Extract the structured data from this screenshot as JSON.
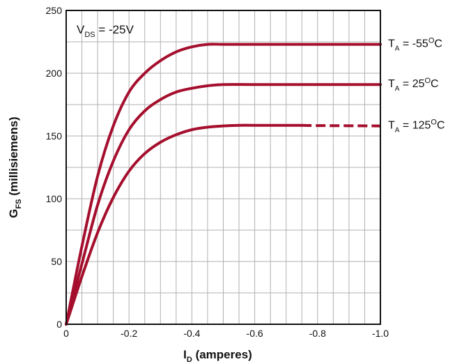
{
  "chart_data": {
    "type": "line",
    "x_axis": {
      "label_main": "I",
      "label_sub": "D",
      "label_rest": " (amperes)",
      "range": [
        0,
        -1.0
      ],
      "ticks": [
        0,
        -0.2,
        -0.4,
        -0.6,
        -0.8,
        -1.0
      ],
      "tick_labels": [
        "0",
        "-0.2",
        "-0.4",
        "-0.6",
        "-0.8",
        "-1.0"
      ]
    },
    "y_axis": {
      "label_main": "G",
      "label_sub": "FS",
      "label_rest": " (millisiemens)",
      "range": [
        0,
        250
      ],
      "ticks": [
        0,
        50,
        100,
        150,
        200,
        250
      ],
      "tick_labels": [
        "0",
        "50",
        "100",
        "150",
        "200",
        "250"
      ]
    },
    "grid": true,
    "annotation": {
      "main": "V",
      "sub": "DS",
      "rest": " = -25V"
    },
    "line_color": "#a50f2d",
    "series": [
      {
        "label": {
          "main": "T",
          "sub": "A",
          "rest": " = -55",
          "sup": "O",
          "unit": "C"
        },
        "x": [
          0,
          -0.05,
          -0.1,
          -0.15,
          -0.2,
          -0.25,
          -0.3,
          -0.35,
          -0.4,
          -0.45,
          -0.5,
          -0.6,
          -0.8,
          -1.0
        ],
        "y": [
          0,
          62,
          118,
          158,
          185,
          200,
          210,
          217,
          221,
          223,
          223,
          223,
          223,
          223
        ],
        "dashed_from": null
      },
      {
        "label": {
          "main": "T",
          "sub": "A",
          "rest": " = 25",
          "sup": "O",
          "unit": "C"
        },
        "x": [
          0,
          -0.05,
          -0.1,
          -0.15,
          -0.2,
          -0.25,
          -0.3,
          -0.35,
          -0.4,
          -0.45,
          -0.5,
          -0.6,
          -0.8,
          -1.0
        ],
        "y": [
          0,
          48,
          95,
          130,
          155,
          170,
          179,
          185,
          188,
          190,
          191,
          191,
          191,
          191
        ],
        "dashed_from": null
      },
      {
        "label": {
          "main": "T",
          "sub": "A",
          "rest": " = 125",
          "sup": "O",
          "unit": "C"
        },
        "x": [
          0,
          -0.05,
          -0.1,
          -0.15,
          -0.2,
          -0.25,
          -0.3,
          -0.35,
          -0.4,
          -0.45,
          -0.5,
          -0.55,
          -0.6,
          -0.75,
          -0.8,
          -1.0
        ],
        "y": [
          0,
          38,
          73,
          101,
          122,
          136,
          145,
          151,
          155,
          157,
          158,
          158.5,
          158.5,
          158.5,
          158.3,
          158
        ],
        "dashed_from": -0.75
      }
    ]
  }
}
